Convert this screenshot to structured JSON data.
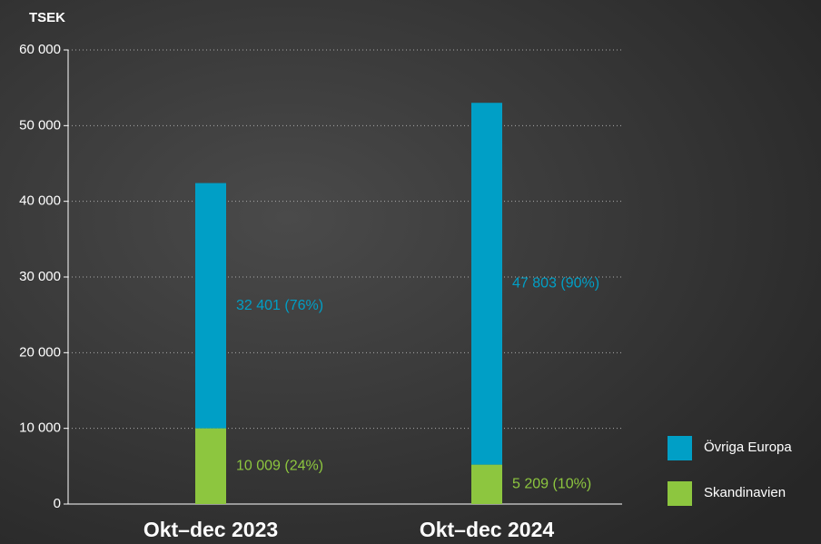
{
  "chart_data": {
    "type": "stacked-bar",
    "y_axis_label": "TSEK",
    "categories": [
      "Okt–dec 2023",
      "Okt–dec 2024"
    ],
    "series": [
      {
        "name": "Skandinavien",
        "color": "#8dc63f",
        "values": [
          10009,
          5209
        ],
        "value_labels": [
          "10 009 (24%)",
          "5 209 (10%)"
        ]
      },
      {
        "name": "Övriga Europa",
        "color": "#009fc6",
        "values": [
          32401,
          47803
        ],
        "value_labels": [
          "32 401 (76%)",
          "47 803 (90%)"
        ]
      }
    ],
    "ylim": [
      0,
      60000
    ],
    "yticks": [
      0,
      {
        "value": 10000,
        "label": "10 000"
      },
      {
        "value": 20000,
        "label": "20 000"
      },
      {
        "value": 30000,
        "label": "30 000"
      },
      {
        "value": 40000,
        "label": "40 000"
      },
      {
        "value": 50000,
        "label": "50 000"
      },
      {
        "value": 60000,
        "label": "60 000"
      }
    ],
    "grid": true,
    "legend": "right"
  }
}
